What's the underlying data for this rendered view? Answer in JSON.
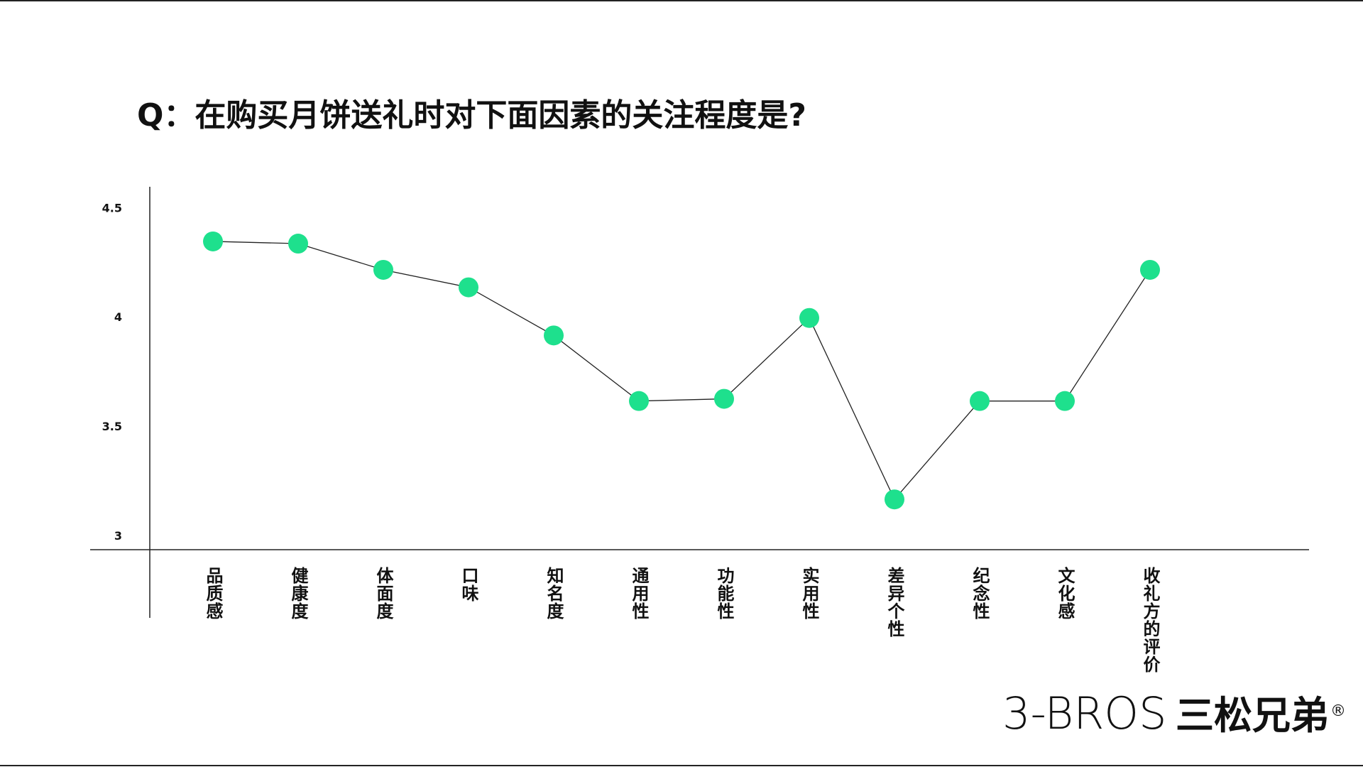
{
  "chart_data": {
    "type": "line",
    "title": "Q：在购买月饼送礼时对下面因素的关注程度是?",
    "categories": [
      "品质感",
      "健康度",
      "体面度",
      "口味",
      "知名度",
      "通用性",
      "功能性",
      "实用性",
      "差异个性",
      "纪念性",
      "文化感",
      "收礼方的评价"
    ],
    "values": [
      4.35,
      4.34,
      4.22,
      4.14,
      3.92,
      3.62,
      3.63,
      4.0,
      3.17,
      3.62,
      3.62,
      4.22
    ],
    "color": "#1ee08d",
    "line_color": "#222222",
    "ylim": [
      2.94,
      4.6
    ],
    "yticks": [
      3,
      3.5,
      4,
      4.5
    ]
  },
  "logo": {
    "latin": "3-BROS",
    "chinese": "三松兄弟",
    "mark": "®"
  }
}
